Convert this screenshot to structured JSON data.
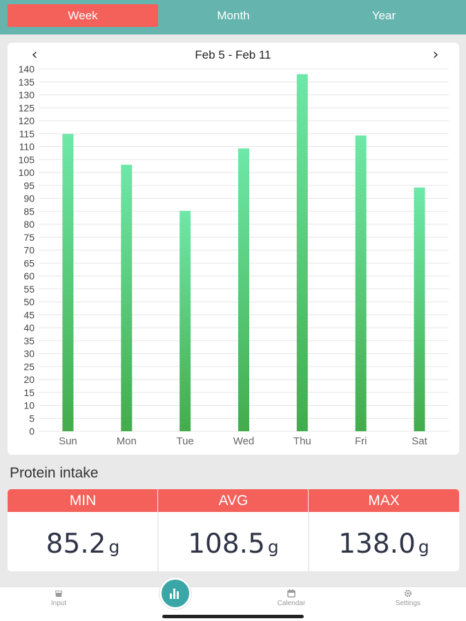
{
  "tabs": {
    "week": "Week",
    "month": "Month",
    "year": "Year",
    "active": "Week"
  },
  "date_range": "Feb 5 - Feb 11",
  "colors": {
    "header": "#66b4ae",
    "accent": "#f4605a",
    "bar_top": "#6ee8a8",
    "bar_bottom": "#43ac4c"
  },
  "chart_data": {
    "type": "bar",
    "categories": [
      "Sun",
      "Mon",
      "Tue",
      "Wed",
      "Thu",
      "Fri",
      "Sat"
    ],
    "values": [
      114.9,
      103.0,
      85.2,
      109.3,
      138.0,
      114.3,
      94.2
    ],
    "ylim": [
      0,
      140
    ],
    "yticks": [
      0,
      5,
      10,
      15,
      20,
      25,
      30,
      35,
      40,
      45,
      50,
      55,
      60,
      65,
      70,
      75,
      80,
      85,
      90,
      95,
      100,
      105,
      110,
      115,
      120,
      125,
      130,
      135,
      140
    ],
    "grid": true
  },
  "section_title": "Protein intake",
  "stats": {
    "min": {
      "label": "MIN",
      "value": "85.2",
      "unit": "g"
    },
    "avg": {
      "label": "AVG",
      "value": "108.5",
      "unit": "g"
    },
    "max": {
      "label": "MAX",
      "value": "138.0",
      "unit": "g"
    }
  },
  "bottom_nav": {
    "input": {
      "label": "Input",
      "icon": "cup-icon"
    },
    "stats": {
      "icon": "bar-chart-icon"
    },
    "calendar": {
      "label": "Calendar",
      "icon": "calendar-icon"
    },
    "settings": {
      "label": "Settings",
      "icon": "gear-icon"
    }
  },
  "nav_icons": {
    "prev": "‹",
    "next": "›"
  }
}
